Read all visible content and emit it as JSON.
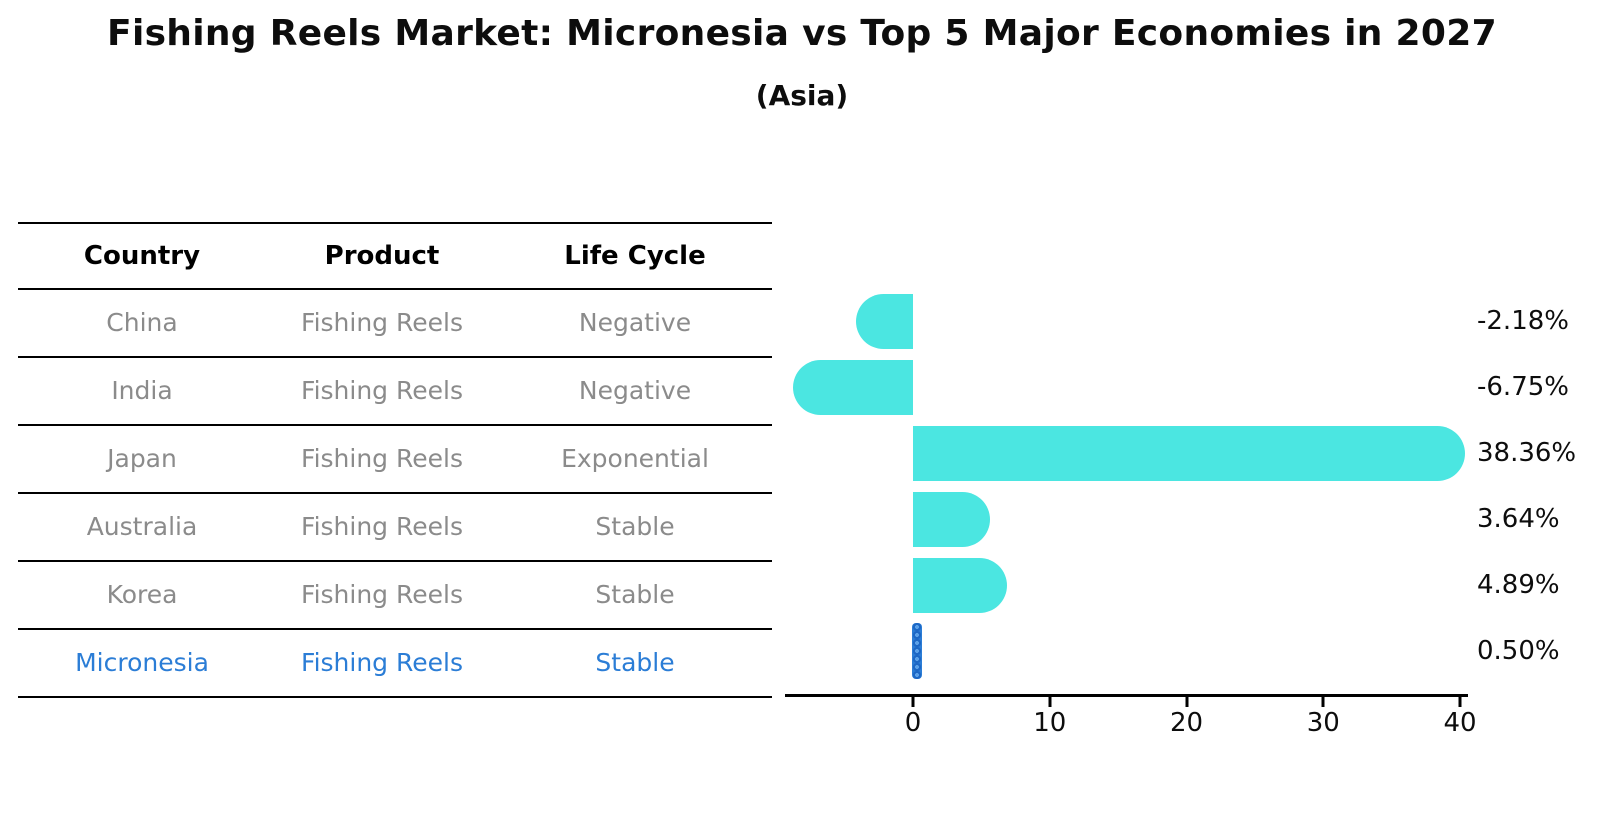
{
  "title": "Fishing Reels Market: Micronesia vs Top 5 Major Economies in 2027",
  "subtitle": "(Asia)",
  "table": {
    "headers": [
      "Country",
      "Product",
      "Life Cycle"
    ],
    "rows": [
      {
        "country": "China",
        "product": "Fishing Reels",
        "life_cycle": "Negative",
        "highlight": false
      },
      {
        "country": "India",
        "product": "Fishing Reels",
        "life_cycle": "Negative",
        "highlight": false
      },
      {
        "country": "Japan",
        "product": "Fishing Reels",
        "life_cycle": "Exponential",
        "highlight": false
      },
      {
        "country": "Australia",
        "product": "Fishing Reels",
        "life_cycle": "Stable",
        "highlight": false
      },
      {
        "country": "Korea",
        "product": "Fishing Reels",
        "life_cycle": "Stable",
        "highlight": false
      },
      {
        "country": "Micronesia",
        "product": "Fishing Reels",
        "life_cycle": "Stable",
        "highlight": true
      }
    ]
  },
  "chart_data": {
    "type": "bar",
    "orientation": "horizontal",
    "categories": [
      "China",
      "India",
      "Japan",
      "Australia",
      "Korea",
      "Micronesia"
    ],
    "values": [
      -2.18,
      -6.75,
      38.36,
      3.64,
      4.89,
      0.5
    ],
    "value_labels": [
      "-2.18%",
      "-6.75%",
      "38.36%",
      "3.64%",
      "4.89%",
      "0.50%"
    ],
    "xticks": [
      0,
      10,
      20,
      30,
      40
    ],
    "xlim": [
      -9.5,
      40.5
    ],
    "grid": false,
    "legend": false,
    "xlabel": "",
    "ylabel": "",
    "bar_color": "#4be6e1",
    "highlight_color": "#2b7dd6",
    "highlight_dark": "#1c67c5",
    "highlight_light": "#5aa0e8",
    "highlight_index": 5
  }
}
